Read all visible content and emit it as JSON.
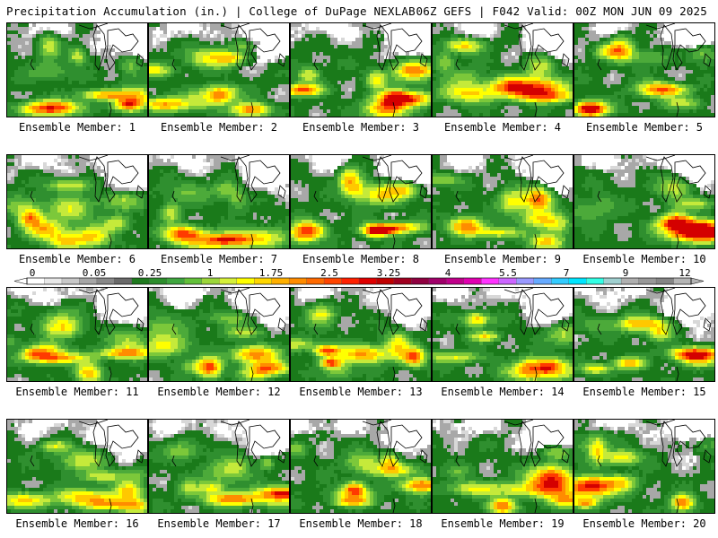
{
  "header": {
    "left": "Precipitation Accumulation (in.) | College of DuPage NEXLAB",
    "right": "06Z GEFS | F042 Valid: 00Z MON JUN 09 2025"
  },
  "members": [
    {
      "label": "Ensemble Member: 1"
    },
    {
      "label": "Ensemble Member: 2"
    },
    {
      "label": "Ensemble Member: 3"
    },
    {
      "label": "Ensemble Member: 4"
    },
    {
      "label": "Ensemble Member: 5"
    },
    {
      "label": "Ensemble Member: 6"
    },
    {
      "label": "Ensemble Member: 7"
    },
    {
      "label": "Ensemble Member: 8"
    },
    {
      "label": "Ensemble Member: 9"
    },
    {
      "label": "Ensemble Member: 10"
    },
    {
      "label": "Ensemble Member: 11"
    },
    {
      "label": "Ensemble Member: 12"
    },
    {
      "label": "Ensemble Member: 13"
    },
    {
      "label": "Ensemble Member: 14"
    },
    {
      "label": "Ensemble Member: 15"
    },
    {
      "label": "Ensemble Member: 16"
    },
    {
      "label": "Ensemble Member: 17"
    },
    {
      "label": "Ensemble Member: 18"
    },
    {
      "label": "Ensemble Member: 19"
    },
    {
      "label": "Ensemble Member: 20"
    }
  ],
  "colorbar": {
    "tick_labels": [
      "0",
      "0.05",
      "0.25",
      "1",
      "1.75",
      "2.5",
      "3.25",
      "4",
      "5.5",
      "7",
      "9",
      "12"
    ],
    "colors": [
      "#ffffff",
      "#e8e8e8",
      "#c8c8c8",
      "#a6a6a6",
      "#888888",
      "#6a6a6a",
      "#1f7a1f",
      "#2d8e2d",
      "#3fa63f",
      "#63c13a",
      "#9cd63a",
      "#d6f03a",
      "#ffff00",
      "#ffd700",
      "#ffb000",
      "#ff8c00",
      "#ff6a00",
      "#ff4500",
      "#ff2000",
      "#e00000",
      "#c00000",
      "#a00020",
      "#900040",
      "#a0006a",
      "#c0008a",
      "#e000b0",
      "#ff33ff",
      "#cc66ff",
      "#9999ff",
      "#66aaff",
      "#33ccff",
      "#00e5ff",
      "#33ffe5",
      "#a0d0d0",
      "#b0b0b0",
      "#989898",
      "#858585",
      "#b5b5b5"
    ]
  }
}
